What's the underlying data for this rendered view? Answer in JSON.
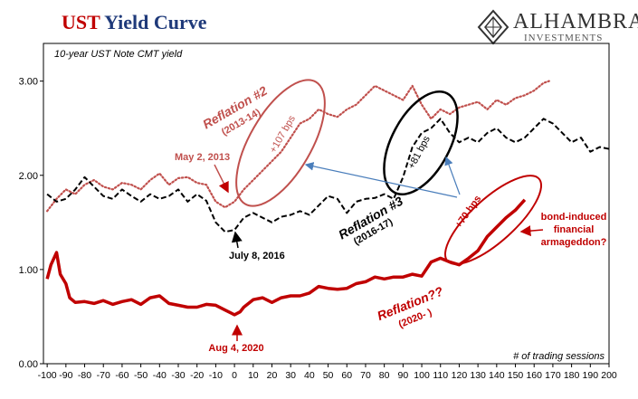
{
  "header": {
    "title_part1": "UST",
    "title_part2": "Yield Curve",
    "logo_name": "ALHAMBRA",
    "logo_sub": "INVESTMENTS"
  },
  "colors": {
    "series_2013": "#c0504d",
    "series_2016": "#000000",
    "series_2020": "#c00000",
    "arrow": "#4a7ebb"
  },
  "chart_data": {
    "type": "line",
    "subtitle": "10-year UST Note CMT yield",
    "xlabel": "# of trading sessions",
    "xlim": [
      -102,
      200
    ],
    "ylim": [
      0,
      3.4
    ],
    "x_ticks": [
      -100,
      -90,
      -80,
      -70,
      -60,
      -50,
      -40,
      -30,
      -20,
      -10,
      0,
      10,
      20,
      30,
      40,
      50,
      60,
      70,
      80,
      90,
      100,
      110,
      120,
      130,
      140,
      150,
      160,
      170,
      180,
      190,
      200
    ],
    "y_ticks": [
      0,
      1,
      2,
      3
    ],
    "y_tick_labels": [
      "0.00",
      "1.00",
      "2.00",
      "3.00"
    ],
    "series": [
      {
        "key": "2013",
        "style": "dotted",
        "x": [
          -100,
          -95,
          -90,
          -85,
          -80,
          -75,
          -70,
          -65,
          -60,
          -55,
          -50,
          -45,
          -40,
          -35,
          -30,
          -25,
          -20,
          -15,
          -10,
          -5,
          0,
          5,
          10,
          15,
          20,
          25,
          30,
          35,
          40,
          45,
          50,
          55,
          60,
          65,
          70,
          75,
          80,
          85,
          90,
          95,
          100,
          105,
          110,
          115,
          120,
          125,
          130,
          135,
          140,
          145,
          150,
          155,
          160,
          165,
          168
        ],
        "values": [
          1.62,
          1.75,
          1.85,
          1.8,
          1.9,
          1.95,
          1.88,
          1.85,
          1.92,
          1.9,
          1.85,
          1.95,
          2.02,
          1.9,
          1.97,
          1.98,
          1.92,
          1.9,
          1.72,
          1.66,
          1.72,
          1.85,
          1.95,
          2.05,
          2.15,
          2.25,
          2.4,
          2.55,
          2.6,
          2.7,
          2.65,
          2.62,
          2.7,
          2.75,
          2.85,
          2.95,
          2.9,
          2.85,
          2.8,
          2.95,
          2.75,
          2.6,
          2.7,
          2.65,
          2.72,
          2.75,
          2.78,
          2.7,
          2.8,
          2.75,
          2.82,
          2.85,
          2.9,
          2.98,
          3.0
        ]
      },
      {
        "key": "2016",
        "style": "dashed",
        "x": [
          -100,
          -95,
          -90,
          -85,
          -80,
          -75,
          -70,
          -65,
          -60,
          -55,
          -50,
          -45,
          -40,
          -35,
          -30,
          -25,
          -20,
          -15,
          -10,
          -5,
          0,
          5,
          10,
          15,
          20,
          25,
          30,
          35,
          40,
          45,
          50,
          55,
          60,
          65,
          70,
          75,
          80,
          85,
          90,
          95,
          100,
          105,
          110,
          115,
          120,
          125,
          130,
          135,
          140,
          145,
          150,
          155,
          160,
          165,
          170,
          175,
          180,
          185,
          190,
          195,
          200
        ],
        "values": [
          1.8,
          1.72,
          1.75,
          1.85,
          1.98,
          1.88,
          1.78,
          1.75,
          1.85,
          1.78,
          1.72,
          1.8,
          1.75,
          1.78,
          1.85,
          1.72,
          1.8,
          1.73,
          1.5,
          1.4,
          1.42,
          1.55,
          1.6,
          1.55,
          1.5,
          1.56,
          1.58,
          1.62,
          1.58,
          1.68,
          1.78,
          1.75,
          1.6,
          1.72,
          1.75,
          1.76,
          1.8,
          1.75,
          1.98,
          2.3,
          2.45,
          2.5,
          2.6,
          2.45,
          2.35,
          2.4,
          2.35,
          2.45,
          2.5,
          2.4,
          2.35,
          2.4,
          2.5,
          2.6,
          2.55,
          2.45,
          2.35,
          2.4,
          2.25,
          2.3,
          2.28
        ]
      },
      {
        "key": "2020",
        "style": "solid",
        "x": [
          -100,
          -98,
          -95,
          -93,
          -90,
          -88,
          -85,
          -80,
          -75,
          -70,
          -65,
          -60,
          -55,
          -50,
          -45,
          -40,
          -35,
          -30,
          -25,
          -20,
          -15,
          -10,
          -5,
          0,
          3,
          5,
          10,
          15,
          20,
          25,
          30,
          35,
          40,
          45,
          50,
          55,
          60,
          65,
          70,
          75,
          80,
          85,
          90,
          95,
          100,
          105,
          110,
          115,
          120,
          125,
          130,
          135,
          140,
          145,
          150,
          155
        ],
        "values": [
          0.9,
          1.05,
          1.18,
          0.95,
          0.85,
          0.7,
          0.65,
          0.66,
          0.64,
          0.67,
          0.63,
          0.66,
          0.68,
          0.63,
          0.7,
          0.72,
          0.64,
          0.62,
          0.6,
          0.6,
          0.63,
          0.62,
          0.57,
          0.52,
          0.55,
          0.6,
          0.68,
          0.7,
          0.65,
          0.7,
          0.72,
          0.72,
          0.75,
          0.82,
          0.8,
          0.79,
          0.8,
          0.85,
          0.87,
          0.92,
          0.9,
          0.92,
          0.92,
          0.95,
          0.93,
          1.08,
          1.12,
          1.08,
          1.05,
          1.12,
          1.2,
          1.35,
          1.45,
          1.55,
          1.63,
          1.74
        ]
      }
    ],
    "annotations": {
      "reflation2": "Reflation #2",
      "reflation2_years": "(2013-14)",
      "bps107": "+107 bps",
      "may2013": "May 2, 2013",
      "reflation3": "Reflation #3",
      "reflation3_years": "(2016-17)",
      "bps81": "+81 bps",
      "july2016": "July 8, 2016",
      "bps70": "+70 bps",
      "reflation_q": "Reflation??",
      "reflation_q_years": "(2020- )",
      "aug2020": "Aug 4, 2020",
      "bond_note": [
        "bond-induced",
        "financial",
        "armageddon?"
      ]
    }
  }
}
